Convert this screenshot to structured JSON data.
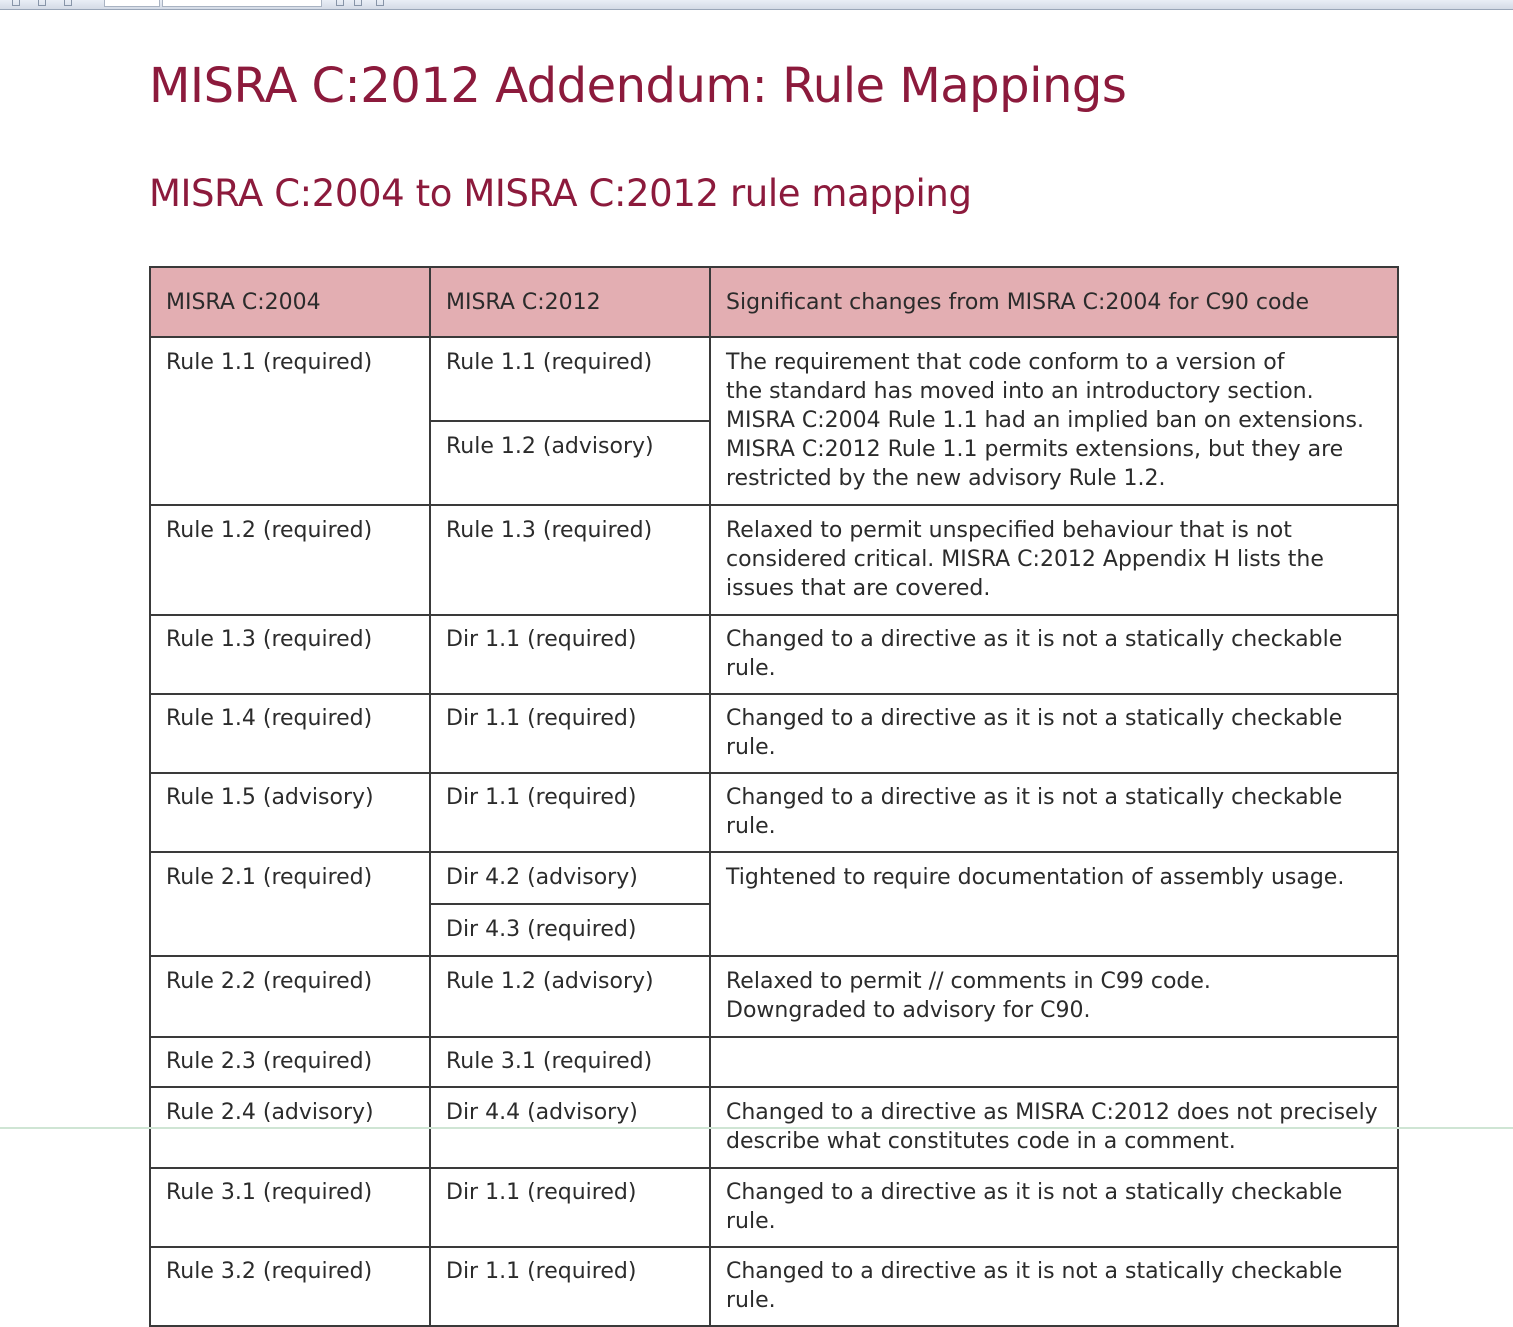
{
  "document": {
    "title": "MISRA C:2012 Addendum: Rule Mappings",
    "subtitle": "MISRA C:2004 to MISRA C:2012 rule mapping"
  },
  "table": {
    "headers": [
      "MISRA C:2004",
      "MISRA C:2012",
      "Significant changes from MISRA C:2004 for C90 code"
    ],
    "rows": [
      {
        "c2004": "Rule 1.1 (required)",
        "c2012": [
          "Rule 1.1 (required)",
          "Rule 1.2 (advisory)"
        ],
        "notes": "The requirement that code conform to a version of\nthe standard has moved into an introductory section.\nMISRA C:2004 Rule 1.1 had an implied ban on extensions.\nMISRA C:2012 Rule 1.1 permits extensions, but they are\nrestricted by the new advisory Rule 1.2."
      },
      {
        "c2004": "Rule 1.2 (required)",
        "c2012": [
          "Rule 1.3 (required)"
        ],
        "notes": "Relaxed to permit unspecified behaviour that is not\nconsidered critical. MISRA C:2012 Appendix H lists the\nissues that are covered."
      },
      {
        "c2004": "Rule 1.3 (required)",
        "c2012": [
          "Dir 1.1 (required)"
        ],
        "notes": "Changed to a directive as it is not a statically checkable rule."
      },
      {
        "c2004": "Rule 1.4 (required)",
        "c2012": [
          "Dir 1.1 (required)"
        ],
        "notes": "Changed to a directive as it is not a statically checkable rule."
      },
      {
        "c2004": "Rule 1.5 (advisory)",
        "c2012": [
          "Dir 1.1 (required)"
        ],
        "notes": "Changed to a directive as it is not a statically checkable rule."
      },
      {
        "c2004": "Rule 2.1 (required)",
        "c2012": [
          "Dir 4.2 (advisory)",
          "Dir 4.3 (required)"
        ],
        "notes": "Tightened to require documentation of assembly usage."
      },
      {
        "c2004": "Rule 2.2 (required)",
        "c2012": [
          "Rule 1.2 (advisory)"
        ],
        "notes": "Relaxed to permit // comments in C99 code.\nDowngraded to advisory for C90."
      },
      {
        "c2004": "Rule 2.3 (required)",
        "c2012": [
          "Rule 3.1 (required)"
        ],
        "notes": ""
      },
      {
        "c2004": "Rule 2.4 (advisory)",
        "c2012": [
          "Dir 4.4 (advisory)"
        ],
        "notes": "Changed to a directive as MISRA C:2012 does not precisely\ndescribe what constitutes code in a comment."
      },
      {
        "c2004": "Rule 3.1 (required)",
        "c2012": [
          "Dir 1.1 (required)"
        ],
        "notes": "Changed to a directive as it is not a statically checkable rule."
      },
      {
        "c2004": "Rule 3.2 (required)",
        "c2012": [
          "Dir 1.1 (required)"
        ],
        "notes": "Changed to a directive as it is not a statically checkable rule."
      }
    ]
  }
}
